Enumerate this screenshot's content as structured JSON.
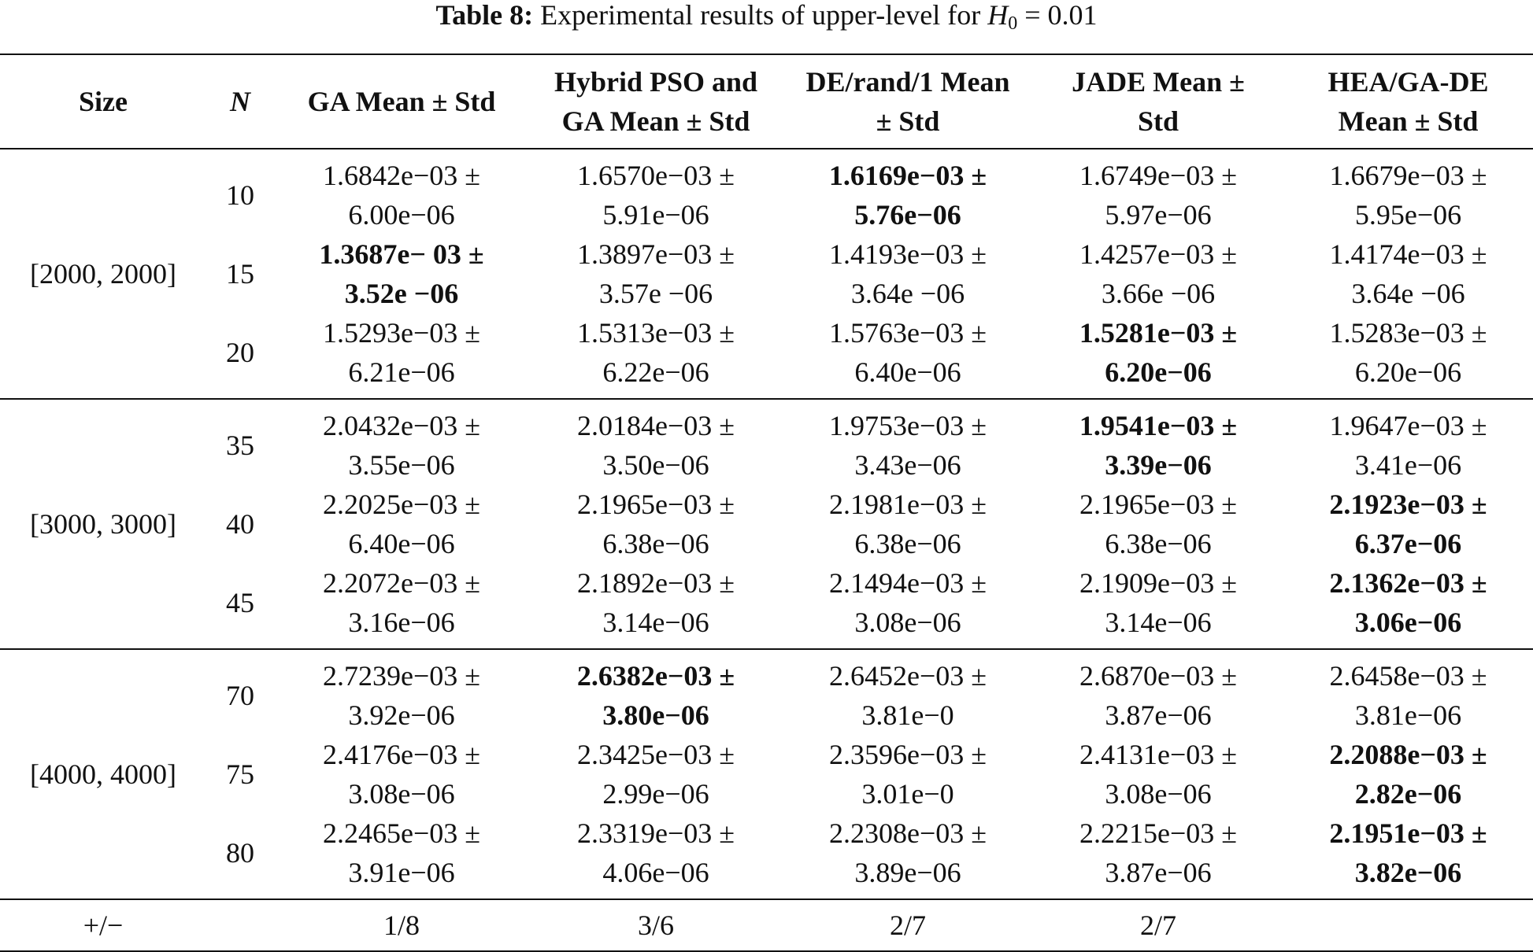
{
  "caption": {
    "label": "Table 8:",
    "text_before": "Experimental results of upper-level for ",
    "symbol": "H",
    "subscript": "0",
    "text_after": " = 0.01"
  },
  "headers": {
    "size": "Size",
    "n": "N",
    "ga": "GA Mean ± Std",
    "hybrid_1": "Hybrid PSO and",
    "hybrid_2": "GA Mean ± Std",
    "de_1": "DE/rand/1 Mean",
    "de_2": "± Std",
    "jade_1": "JADE Mean ±",
    "jade_2": "Std",
    "hea_1": "HEA/GA-DE",
    "hea_2": "Mean ± Std"
  },
  "groups": [
    {
      "size": "[2000, 2000]",
      "rows": [
        {
          "n": "10",
          "ga": {
            "mean": "1.6842e−03 ±",
            "std": "6.00e−06"
          },
          "hybrid": {
            "mean": "1.6570e−03 ±",
            "std": "5.91e−06"
          },
          "de": {
            "mean": "1.6169e−03 ±",
            "std": "5.76e−06"
          },
          "jade": {
            "mean": "1.6749e−03 ±",
            "std": "5.97e−06"
          },
          "hea": {
            "mean": "1.6679e−03 ±",
            "std": "5.95e−06"
          }
        },
        {
          "n": "15",
          "ga": {
            "mean": "1.3687e− 03 ±",
            "std": "3.52e −06"
          },
          "hybrid": {
            "mean": "1.3897e−03 ±",
            "std": "3.57e −06"
          },
          "de": {
            "mean": "1.4193e−03 ±",
            "std": "3.64e −06"
          },
          "jade": {
            "mean": "1.4257e−03 ±",
            "std": "3.66e −06"
          },
          "hea": {
            "mean": "1.4174e−03 ±",
            "std": "3.64e −06"
          }
        },
        {
          "n": "20",
          "ga": {
            "mean": "1.5293e−03 ±",
            "std": "6.21e−06"
          },
          "hybrid": {
            "mean": "1.5313e−03 ±",
            "std": "6.22e−06"
          },
          "de": {
            "mean": "1.5763e−03 ±",
            "std": "6.40e−06"
          },
          "jade": {
            "mean": "1.5281e−03 ±",
            "std": "6.20e−06"
          },
          "hea": {
            "mean": "1.5283e−03 ±",
            "std": "6.20e−06"
          }
        }
      ]
    },
    {
      "size": "[3000, 3000]",
      "rows": [
        {
          "n": "35",
          "ga": {
            "mean": "2.0432e−03 ±",
            "std": "3.55e−06"
          },
          "hybrid": {
            "mean": "2.0184e−03 ±",
            "std": "3.50e−06"
          },
          "de": {
            "mean": "1.9753e−03 ±",
            "std": "3.43e−06"
          },
          "jade": {
            "mean": "1.9541e−03 ±",
            "std": "3.39e−06"
          },
          "hea": {
            "mean": "1.9647e−03 ±",
            "std": "3.41e−06"
          }
        },
        {
          "n": "40",
          "ga": {
            "mean": "2.2025e−03 ±",
            "std": "6.40e−06"
          },
          "hybrid": {
            "mean": "2.1965e−03 ±",
            "std": "6.38e−06"
          },
          "de": {
            "mean": "2.1981e−03 ±",
            "std": "6.38e−06"
          },
          "jade": {
            "mean": "2.1965e−03 ±",
            "std": "6.38e−06"
          },
          "hea": {
            "mean": "2.1923e−03 ±",
            "std": "6.37e−06"
          }
        },
        {
          "n": "45",
          "ga": {
            "mean": "2.2072e−03 ±",
            "std": "3.16e−06"
          },
          "hybrid": {
            "mean": "2.1892e−03 ±",
            "std": "3.14e−06"
          },
          "de": {
            "mean": "2.1494e−03 ±",
            "std": "3.08e−06"
          },
          "jade": {
            "mean": "2.1909e−03 ±",
            "std": "3.14e−06"
          },
          "hea": {
            "mean": "2.1362e−03 ±",
            "std": "3.06e−06"
          }
        }
      ]
    },
    {
      "size": "[4000, 4000]",
      "rows": [
        {
          "n": "70",
          "ga": {
            "mean": "2.7239e−03 ±",
            "std": "3.92e−06"
          },
          "hybrid": {
            "mean": "2.6382e−03 ±",
            "std": "3.80e−06"
          },
          "de": {
            "mean": "2.6452e−03 ±",
            "std": "3.81e−0"
          },
          "jade": {
            "mean": "2.6870e−03 ±",
            "std": "3.87e−06"
          },
          "hea": {
            "mean": "2.6458e−03 ±",
            "std": "3.81e−06"
          }
        },
        {
          "n": "75",
          "ga": {
            "mean": "2.4176e−03 ±",
            "std": "3.08e−06"
          },
          "hybrid": {
            "mean": "2.3425e−03 ±",
            "std": "2.99e−06"
          },
          "de": {
            "mean": "2.3596e−03 ±",
            "std": "3.01e−0"
          },
          "jade": {
            "mean": "2.4131e−03 ±",
            "std": "3.08e−06"
          },
          "hea": {
            "mean": "2.2088e−03 ±",
            "std": "2.82e−06"
          }
        },
        {
          "n": "80",
          "ga": {
            "mean": "2.2465e−03 ±",
            "std": "3.91e−06"
          },
          "hybrid": {
            "mean": "2.3319e−03 ±",
            "std": "4.06e−06"
          },
          "de": {
            "mean": "2.2308e−03 ±",
            "std": "3.89e−06"
          },
          "jade": {
            "mean": "2.2215e−03 ±",
            "std": "3.87e−06"
          },
          "hea": {
            "mean": "2.1951e−03 ±",
            "std": "3.82e−06"
          }
        }
      ]
    }
  ],
  "summary": {
    "label": "+/−",
    "n": "",
    "ga": "1/8",
    "hybrid": "3/6",
    "de": "2/7",
    "jade": "2/7",
    "hea": ""
  }
}
